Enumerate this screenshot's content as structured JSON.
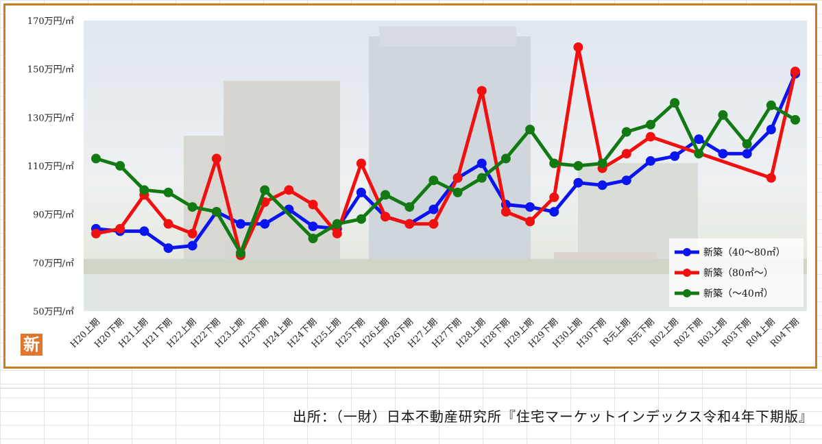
{
  "badge": "新",
  "source": "出所：（一財）日本不動産研究所『住宅マーケットインデックス令和4年下期版』",
  "colors": {
    "blue": "#0a14ee",
    "red": "#f01010",
    "green": "#137a13",
    "frame": "#c87d1e"
  },
  "chart_data": {
    "type": "line",
    "title": "",
    "xlabel": "",
    "ylabel": "",
    "ylim": [
      50,
      170
    ],
    "y_ticks": [
      "50万円/㎡",
      "70万円/㎡",
      "90万円/㎡",
      "110万円/㎡",
      "130万円/㎡",
      "150万円/㎡",
      "170万円/㎡"
    ],
    "y_tick_values": [
      50,
      70,
      90,
      110,
      130,
      150,
      170
    ],
    "categories": [
      "H20上期",
      "H20下期",
      "H21上期",
      "H21下期",
      "H22上期",
      "H22下期",
      "H23上期",
      "H23下期",
      "H24上期",
      "H24下期",
      "H25上期",
      "H25下期",
      "H26上期",
      "H26下期",
      "H27上期",
      "H27下期",
      "H28上期",
      "H28下期",
      "H29上期",
      "H29下期",
      "H30上期",
      "H30下期",
      "R元上期",
      "R元下期",
      "R02上期",
      "R02下期",
      "R03上期",
      "R03下期",
      "R04上期",
      "R04下期"
    ],
    "grid": false,
    "legend_position": "bottom-right",
    "background": "photo of high-rise buildings",
    "series": [
      {
        "name": "新築（40～80㎡）",
        "color": "#0a14ee",
        "values": [
          84,
          83,
          83,
          76,
          77,
          91,
          86,
          86,
          92,
          85,
          84,
          99,
          89,
          86,
          92,
          105,
          111,
          94,
          93,
          91,
          103,
          102,
          104,
          112,
          114,
          121,
          115,
          115,
          125,
          148
        ]
      },
      {
        "name": "新築（80㎡～）",
        "color": "#f01010",
        "values": [
          82,
          84,
          98,
          86,
          82,
          113,
          73,
          95,
          100,
          94,
          82,
          111,
          89,
          86,
          86,
          105,
          141,
          91,
          87,
          97,
          159,
          109,
          115,
          122,
          null,
          null,
          null,
          null,
          105,
          149
        ]
      },
      {
        "name": "新築（～40㎡）",
        "color": "#137a13",
        "values": [
          113,
          110,
          100,
          99,
          93,
          91,
          74,
          100,
          null,
          80,
          86,
          88,
          98,
          93,
          104,
          99,
          105,
          113,
          125,
          111,
          110,
          111,
          124,
          127,
          136,
          115,
          131,
          119,
          135,
          129
        ]
      }
    ]
  }
}
